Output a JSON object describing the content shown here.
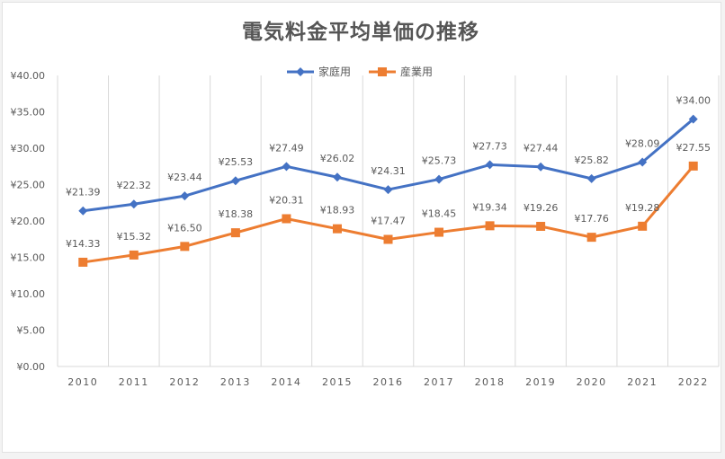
{
  "chart_data": {
    "type": "line",
    "title": "電気料金平均単価の推移",
    "xlabel": "",
    "ylabel": "",
    "categories": [
      "2010",
      "2011",
      "2012",
      "2013",
      "2014",
      "2015",
      "2016",
      "2017",
      "2018",
      "2019",
      "2020",
      "2021",
      "2022"
    ],
    "ylim": [
      0,
      40
    ],
    "yticks": [
      "¥0.00",
      "¥5.00",
      "¥10.00",
      "¥15.00",
      "¥20.00",
      "¥25.00",
      "¥30.00",
      "¥35.00",
      "¥40.00"
    ],
    "grid": "vertical",
    "legend_position": "top-center",
    "series": [
      {
        "name": "家庭用",
        "color": "#4472c4",
        "marker": "diamond",
        "values": [
          21.39,
          22.32,
          23.44,
          25.53,
          27.49,
          26.02,
          24.31,
          25.73,
          27.73,
          27.44,
          25.82,
          28.09,
          34.0
        ],
        "labels": [
          "¥21.39",
          "¥22.32",
          "¥23.44",
          "¥25.53",
          "¥27.49",
          "¥26.02",
          "¥24.31",
          "¥25.73",
          "¥27.73",
          "¥27.44",
          "¥25.82",
          "¥28.09",
          "¥34.00"
        ]
      },
      {
        "name": "産業用",
        "color": "#ed7d31",
        "marker": "square",
        "values": [
          14.33,
          15.32,
          16.5,
          18.38,
          20.31,
          18.93,
          17.47,
          18.45,
          19.34,
          19.26,
          17.76,
          19.28,
          27.55
        ],
        "labels": [
          "¥14.33",
          "¥15.32",
          "¥16.50",
          "¥18.38",
          "¥20.31",
          "¥18.93",
          "¥17.47",
          "¥18.45",
          "¥19.34",
          "¥19.26",
          "¥17.76",
          "¥19.28",
          "¥27.55"
        ]
      }
    ]
  }
}
